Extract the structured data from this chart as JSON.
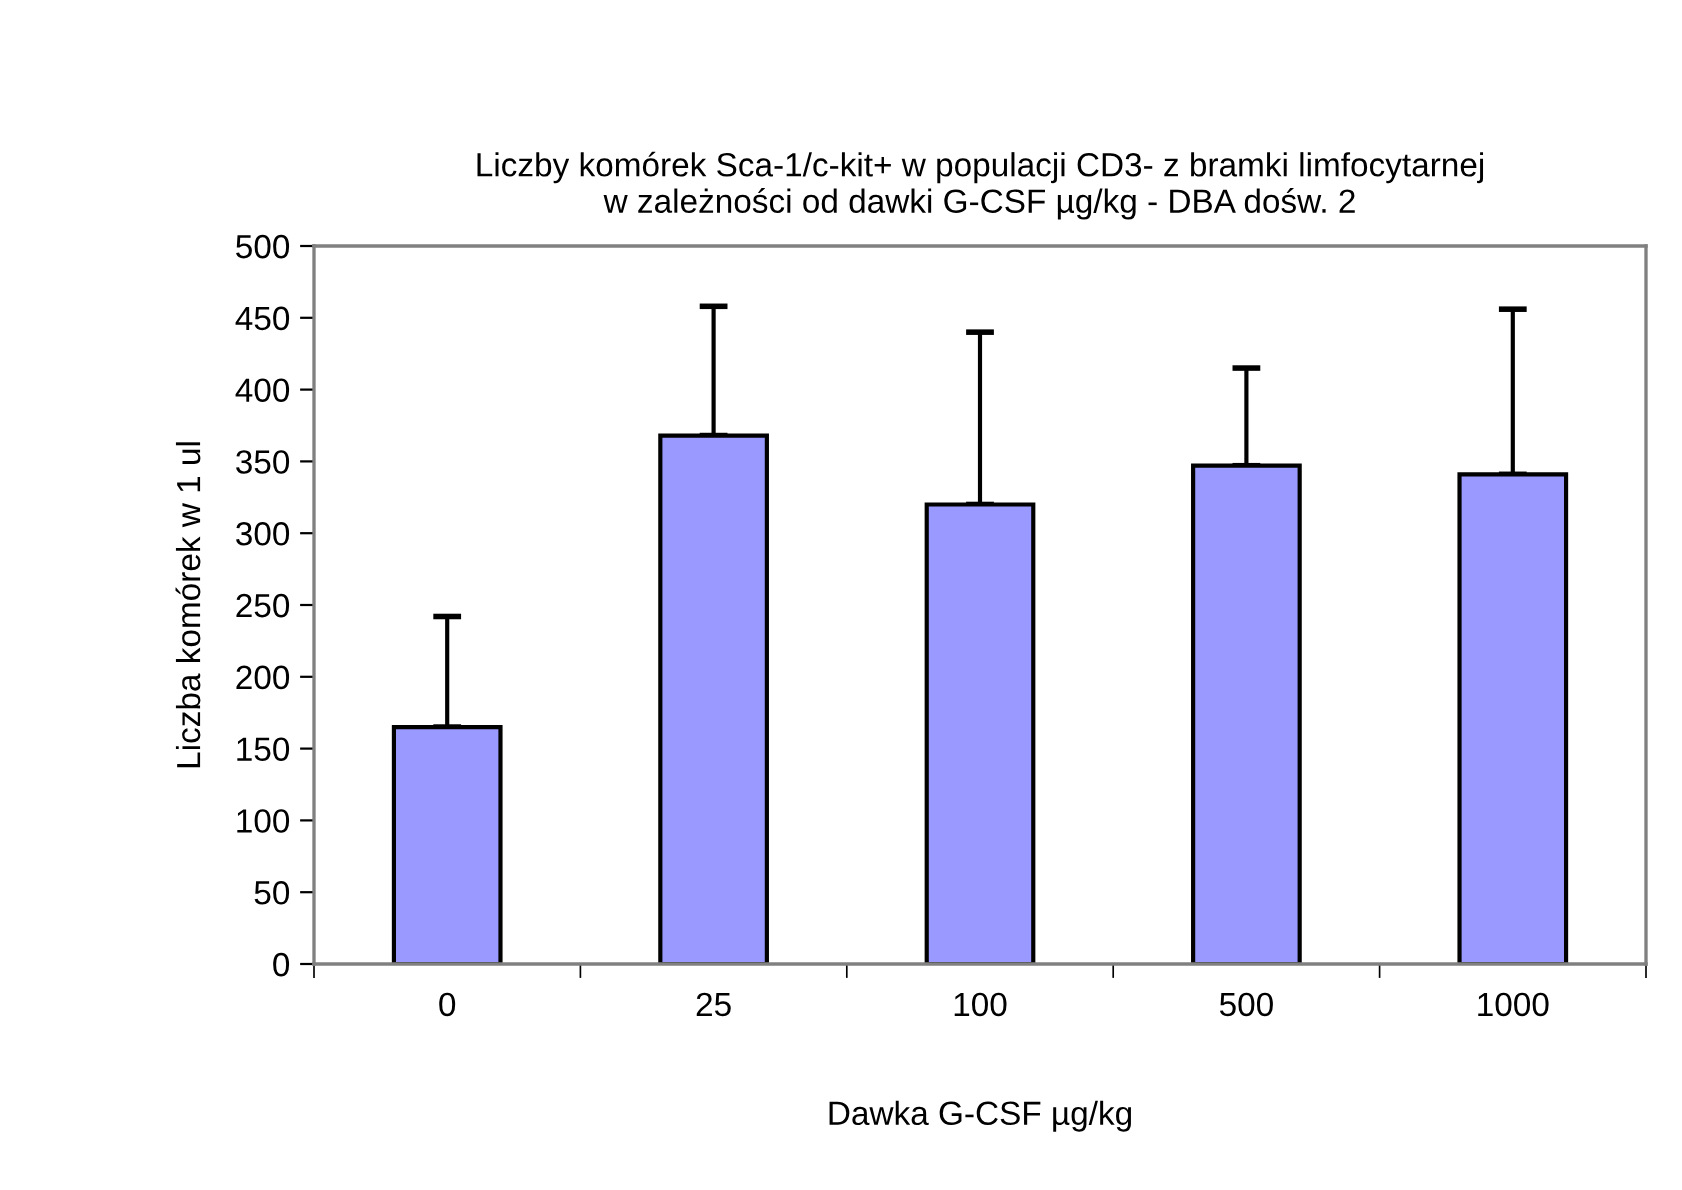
{
  "chart_data": {
    "type": "bar",
    "title": "Liczby komórek Sca-1/c-kit+ w populacji CD3- z bramki limfocytarnej\nw zależności od dawki G-CSF µg/kg - DBA dośw. 2",
    "xlabel": "Dawka G-CSF µg/kg",
    "ylabel": "Liczba komórek w 1 ul",
    "categories": [
      "0",
      "25",
      "100",
      "500",
      "1000"
    ],
    "values": [
      165,
      368,
      320,
      347,
      341
    ],
    "errors": [
      [
        165,
        242
      ],
      [
        368,
        458
      ],
      [
        320,
        440
      ],
      [
        347,
        415
      ],
      [
        341,
        456
      ]
    ],
    "color": "#9999ff",
    "ylim": [
      0,
      500
    ],
    "yticks": [
      0,
      50,
      100,
      150,
      200,
      250,
      300,
      350,
      400,
      450,
      500
    ],
    "grid": false
  }
}
